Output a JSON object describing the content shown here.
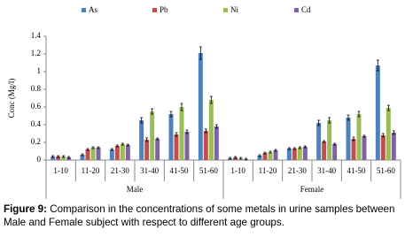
{
  "chart_data": {
    "type": "bar",
    "y_label": "Conc (Mg/l)",
    "categories": [
      "1-10",
      "11-20",
      "21-30",
      "31-40",
      "41-50",
      "51-60",
      "1-10",
      "11-20",
      "21-30",
      "31-40",
      "41-50",
      "51-60"
    ],
    "groups": [
      "Male",
      "Female"
    ],
    "ylim": [
      0,
      1.4
    ],
    "yticks": [
      0,
      0.2,
      0.4,
      0.6,
      0.8,
      1,
      1.2,
      1.4
    ],
    "series": [
      {
        "name": "As",
        "color": "#4f81bd",
        "values": [
          0.04,
          0.06,
          0.12,
          0.45,
          0.52,
          1.21,
          0.02,
          0.05,
          0.13,
          0.42,
          0.48,
          1.07
        ],
        "errors": [
          0.01,
          0.01,
          0.01,
          0.03,
          0.03,
          0.07,
          0.01,
          0.01,
          0.01,
          0.03,
          0.03,
          0.06
        ]
      },
      {
        "name": "Pb",
        "color": "#c0504d",
        "values": [
          0.04,
          0.12,
          0.16,
          0.23,
          0.29,
          0.33,
          0.03,
          0.08,
          0.13,
          0.21,
          0.24,
          0.28
        ],
        "errors": [
          0.01,
          0.01,
          0.01,
          0.02,
          0.02,
          0.02,
          0.01,
          0.01,
          0.01,
          0.01,
          0.02,
          0.02
        ]
      },
      {
        "name": "Ni",
        "color": "#9bbb59",
        "values": [
          0.04,
          0.14,
          0.18,
          0.55,
          0.6,
          0.68,
          0.02,
          0.09,
          0.14,
          0.45,
          0.52,
          0.59
        ],
        "errors": [
          0.01,
          0.01,
          0.01,
          0.03,
          0.04,
          0.04,
          0.01,
          0.01,
          0.01,
          0.03,
          0.03,
          0.03
        ]
      },
      {
        "name": "Cd",
        "color": "#8064a2",
        "values": [
          0.03,
          0.14,
          0.17,
          0.24,
          0.32,
          0.38,
          0.01,
          0.11,
          0.15,
          0.18,
          0.27,
          0.31
        ],
        "errors": [
          0.01,
          0.01,
          0.01,
          0.01,
          0.02,
          0.02,
          0.01,
          0.01,
          0.01,
          0.01,
          0.01,
          0.02
        ]
      }
    ],
    "figure_label": "Figure 9:",
    "caption": "Comparison in the concentrations of some metals in urine samples between Male and Female subject with respect to different age groups."
  }
}
